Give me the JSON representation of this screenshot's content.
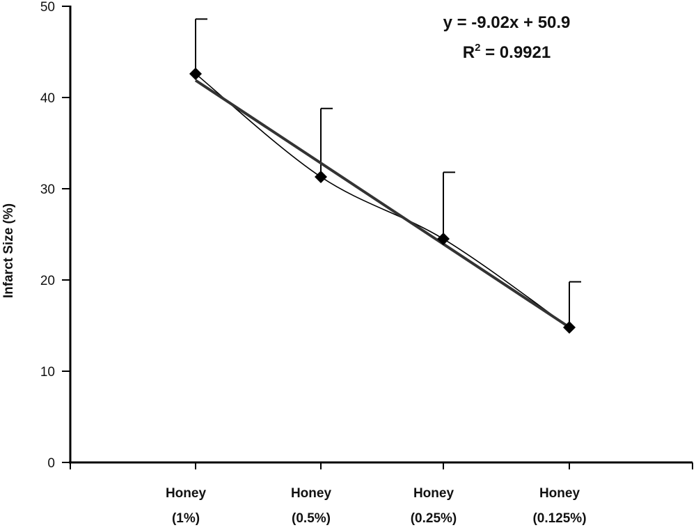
{
  "chart_data": {
    "type": "line",
    "title": "",
    "xlabel": "",
    "ylabel": "Infarct Size (%)",
    "ylim": [
      0,
      50
    ],
    "yticks": [
      "0",
      "10",
      "20",
      "30",
      "40",
      "50"
    ],
    "grid": false,
    "categories": [
      {
        "line1": "Honey",
        "line2": "(1%)"
      },
      {
        "line1": "Honey",
        "line2": "(0.5%)"
      },
      {
        "line1": "Honey",
        "line2": "(0.25%)"
      },
      {
        "line1": "Honey",
        "line2": "(0.125%)"
      }
    ],
    "series": [
      {
        "values": [
          42.6,
          31.3,
          24.5,
          14.8
        ],
        "error_upper": [
          6.0,
          7.5,
          7.3,
          5.0
        ],
        "marker": "diamond",
        "color": "#000000"
      }
    ],
    "trendline": {
      "type": "linear",
      "slope": -9.02,
      "intercept": 50.9,
      "color": "#333333",
      "equation": "y = -9.02x + 50.9",
      "r_squared_label": "R",
      "r_squared_exponent": "2",
      "r_squared_value": " = 0.9921"
    }
  }
}
